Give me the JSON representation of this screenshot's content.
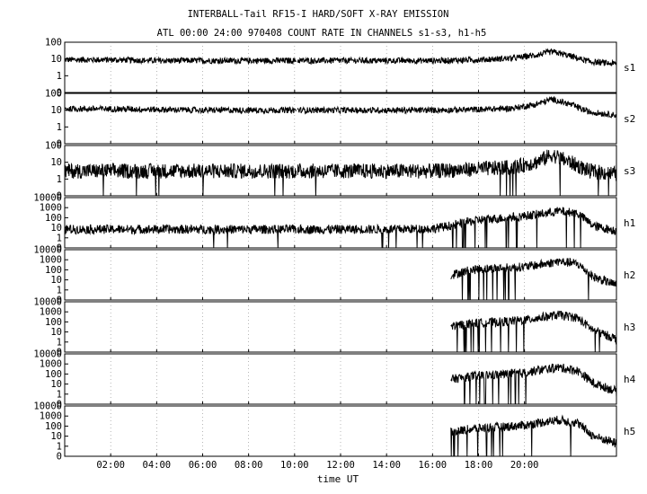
{
  "chart_data": {
    "type": "line",
    "title": "INTERBALL-Tail RF15-I HARD/SOFT X-RAY EMISSION",
    "subtitle": "ATL 00:00 24:00 970408  COUNT RATE IN CHANNELS s1-s3, h1-h5",
    "xlabel": "time UT",
    "xlim": [
      0,
      24
    ],
    "x_ticks": [
      2,
      4,
      6,
      8,
      10,
      12,
      14,
      16,
      18,
      20
    ],
    "x_tick_labels": [
      "02:00",
      "04:00",
      "06:00",
      "08:00",
      "10:00",
      "12:00",
      "14:00",
      "16:00",
      "18:00",
      "20:00"
    ],
    "grid": true,
    "yscale": "log",
    "panels": [
      {
        "name": "s1",
        "y_ticks": [
          100,
          10,
          1,
          0
        ],
        "y_tick_labels": [
          "100",
          "10",
          "1",
          "0"
        ],
        "x": [
          0,
          2,
          4,
          6,
          8,
          10,
          12,
          14,
          16,
          18,
          19.5,
          20.5,
          21.2,
          22,
          22.8,
          24
        ],
        "values": [
          9,
          9,
          8,
          8,
          8,
          8,
          8,
          8,
          8,
          9,
          11,
          17,
          27,
          15,
          7,
          5
        ]
      },
      {
        "name": "s2",
        "y_ticks": [
          100,
          10,
          1,
          0
        ],
        "y_tick_labels": [
          "100",
          "10",
          "1",
          "0"
        ],
        "x": [
          0,
          2,
          4,
          6,
          8,
          10,
          12,
          14,
          16,
          18,
          19.5,
          20.5,
          21.2,
          22,
          22.8,
          24
        ],
        "values": [
          12,
          12,
          11,
          10,
          10,
          10,
          10,
          10,
          10,
          11,
          13,
          22,
          45,
          22,
          8,
          5
        ]
      },
      {
        "name": "s3",
        "y_ticks": [
          100,
          10,
          1,
          0
        ],
        "y_tick_labels": [
          "100",
          "10",
          "1",
          "0"
        ],
        "x": [
          0,
          2,
          4,
          6,
          8,
          10,
          12,
          14,
          16,
          18,
          19.5,
          20.5,
          21.2,
          22,
          22.8,
          24
        ],
        "values": [
          3,
          3,
          3,
          3,
          3,
          3,
          3,
          3,
          3,
          4,
          5,
          10,
          28,
          10,
          3,
          2
        ]
      },
      {
        "name": "h1",
        "y_ticks": [
          10000,
          1000,
          100,
          10,
          1,
          0
        ],
        "y_tick_labels": [
          "10000",
          "1000",
          "100",
          "10",
          "1",
          "0"
        ],
        "x": [
          0,
          2,
          4,
          6,
          8,
          10,
          12,
          14,
          16,
          17,
          18,
          19,
          20,
          20.8,
          21.5,
          22.3,
          23,
          24
        ],
        "values": [
          7,
          7,
          7,
          7,
          7,
          7,
          7,
          7,
          8,
          20,
          60,
          90,
          150,
          250,
          450,
          300,
          15,
          5
        ]
      },
      {
        "name": "h2",
        "y_ticks": [
          10000,
          1000,
          100,
          10,
          1,
          0
        ],
        "y_tick_labels": [
          "10000",
          "1000",
          "100",
          "10",
          "1",
          "0"
        ],
        "x": [
          16.8,
          17.5,
          18,
          19,
          20,
          20.8,
          21.5,
          22.3,
          23,
          24
        ],
        "values": [
          30,
          80,
          120,
          150,
          200,
          350,
          700,
          400,
          20,
          3
        ]
      },
      {
        "name": "h3",
        "y_ticks": [
          10000,
          1000,
          100,
          10,
          1,
          0
        ],
        "y_tick_labels": [
          "10000",
          "1000",
          "100",
          "10",
          "1",
          "0"
        ],
        "x": [
          16.8,
          17.5,
          18,
          19,
          20,
          20.8,
          21.5,
          22.3,
          23,
          24
        ],
        "values": [
          40,
          60,
          80,
          100,
          150,
          300,
          500,
          250,
          15,
          2
        ]
      },
      {
        "name": "h4",
        "y_ticks": [
          10000,
          1000,
          100,
          10,
          1,
          0
        ],
        "y_tick_labels": [
          "10000",
          "1000",
          "100",
          "10",
          "1",
          "0"
        ],
        "x": [
          16.8,
          17.5,
          18,
          19,
          20,
          20.8,
          21.5,
          22.3,
          23,
          24
        ],
        "values": [
          30,
          50,
          70,
          90,
          130,
          280,
          450,
          220,
          12,
          2
        ]
      },
      {
        "name": "h5",
        "y_ticks": [
          10000,
          1000,
          100,
          10,
          1,
          0
        ],
        "y_tick_labels": [
          "10000",
          "1000",
          "100",
          "10",
          "1",
          "0"
        ],
        "x": [
          16.8,
          17.5,
          18,
          19,
          20,
          20.8,
          21.5,
          22.3,
          23,
          24
        ],
        "values": [
          25,
          45,
          60,
          80,
          120,
          250,
          420,
          200,
          10,
          2
        ]
      }
    ]
  }
}
